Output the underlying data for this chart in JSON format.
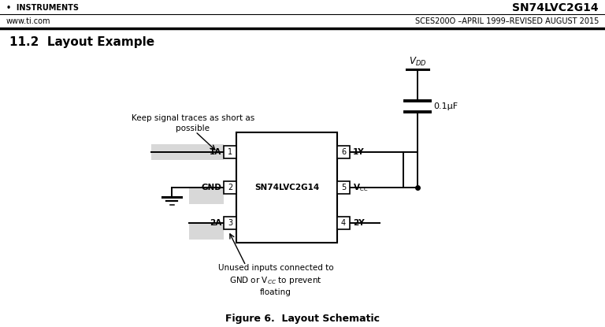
{
  "title_right": "SN74LVC2G14",
  "subtitle_right": "SCES200O –APRIL 1999–REVISED AUGUST 2015",
  "header_left": "www.ti.com",
  "header_bullet": "•  INSTRUMENTS",
  "section_title": "11.2  Layout Example",
  "figure_caption": "Figure 6.  Layout Schematic",
  "bg_color": "#ffffff",
  "chip_label": "SN74LVC2G14",
  "cap_label": "0.1μF",
  "annotation1": "Keep signal traces as short as\npossible",
  "annotation2": "Unused inputs connected to\nGND or Vᴄᴄ to prevent\nfloating",
  "gray_fill": "#cccccc"
}
